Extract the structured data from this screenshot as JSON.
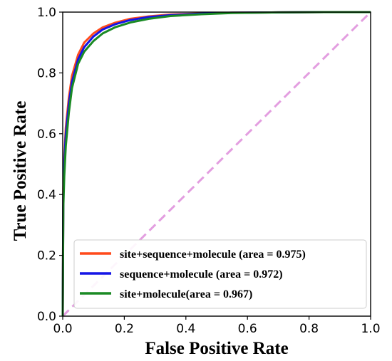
{
  "chart_data": {
    "type": "line",
    "xlabel": "False Positive Rate",
    "ylabel": "True Positive Rate",
    "xlim": [
      0.0,
      1.0
    ],
    "ylim": [
      0.0,
      1.0
    ],
    "xticks": [
      "0.0",
      "0.2",
      "0.4",
      "0.6",
      "0.8",
      "1.0"
    ],
    "yticks": [
      "0.0",
      "0.2",
      "0.4",
      "0.6",
      "0.8",
      "1.0"
    ],
    "grid": false,
    "legend_position": "bottom-right",
    "baseline": {
      "style": "dashed",
      "color": "#e39ee0",
      "x": [
        0.0,
        1.0
      ],
      "y": [
        0.0,
        1.0
      ]
    },
    "series": [
      {
        "name": "site+sequence+molecule (area = 0.975)",
        "color": "#ff4a1c",
        "x": [
          0.0,
          0.002,
          0.005,
          0.01,
          0.02,
          0.03,
          0.05,
          0.07,
          0.1,
          0.13,
          0.17,
          0.22,
          0.28,
          0.35,
          0.45,
          0.55,
          0.7,
          0.85,
          1.0
        ],
        "y": [
          0.0,
          0.42,
          0.52,
          0.62,
          0.72,
          0.79,
          0.86,
          0.9,
          0.93,
          0.95,
          0.965,
          0.978,
          0.986,
          0.992,
          0.996,
          0.998,
          0.999,
          1.0,
          1.0
        ]
      },
      {
        "name": "sequence+molecule (area = 0.972)",
        "color": "#1515e6",
        "x": [
          0.0,
          0.002,
          0.005,
          0.01,
          0.02,
          0.03,
          0.05,
          0.07,
          0.1,
          0.13,
          0.17,
          0.22,
          0.28,
          0.35,
          0.45,
          0.55,
          0.7,
          0.85,
          1.0
        ],
        "y": [
          0.0,
          0.4,
          0.5,
          0.6,
          0.7,
          0.77,
          0.845,
          0.885,
          0.92,
          0.943,
          0.96,
          0.974,
          0.984,
          0.99,
          0.995,
          0.998,
          0.999,
          1.0,
          1.0
        ]
      },
      {
        "name": "site+molecule(area = 0.967)",
        "color": "#1a8a24",
        "x": [
          0.0,
          0.002,
          0.005,
          0.01,
          0.02,
          0.03,
          0.05,
          0.07,
          0.1,
          0.13,
          0.17,
          0.22,
          0.28,
          0.35,
          0.45,
          0.55,
          0.7,
          0.85,
          1.0
        ],
        "y": [
          0.0,
          0.36,
          0.46,
          0.56,
          0.67,
          0.75,
          0.83,
          0.87,
          0.905,
          0.93,
          0.95,
          0.966,
          0.978,
          0.987,
          0.993,
          0.997,
          0.999,
          1.0,
          1.0
        ]
      }
    ]
  }
}
